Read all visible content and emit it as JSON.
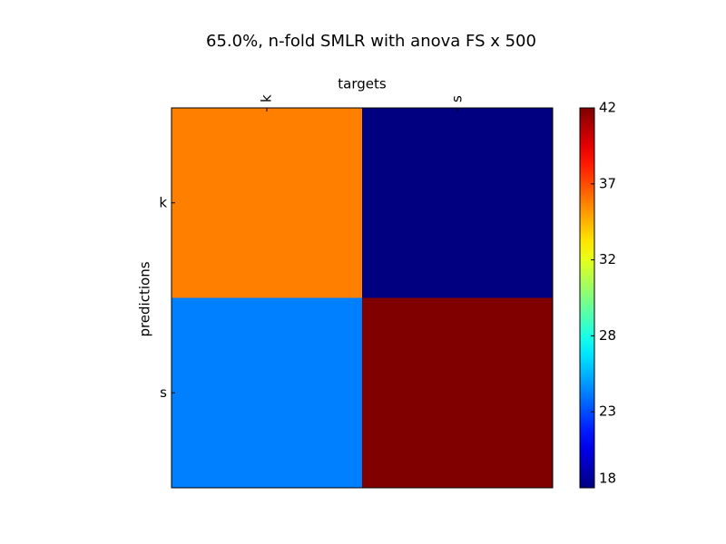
{
  "chart_data": {
    "type": "heatmap",
    "title": "65.0%, n-fold SMLR with anova FS x 500",
    "xlabel": "targets",
    "ylabel": "predictions",
    "x_categories": [
      "k",
      "s"
    ],
    "y_categories": [
      "k",
      "s"
    ],
    "values": [
      [
        36,
        18
      ],
      [
        24,
        42
      ]
    ],
    "colormap": "jet",
    "zlim": [
      18,
      42
    ],
    "zticks": [
      18,
      {
        "value": 22.8,
        "label": "23"
      },
      {
        "value": 27.6,
        "label": "28"
      },
      {
        "value": 32.4,
        "label": "32"
      },
      {
        "value": 37.2,
        "label": "37"
      },
      42
    ]
  }
}
